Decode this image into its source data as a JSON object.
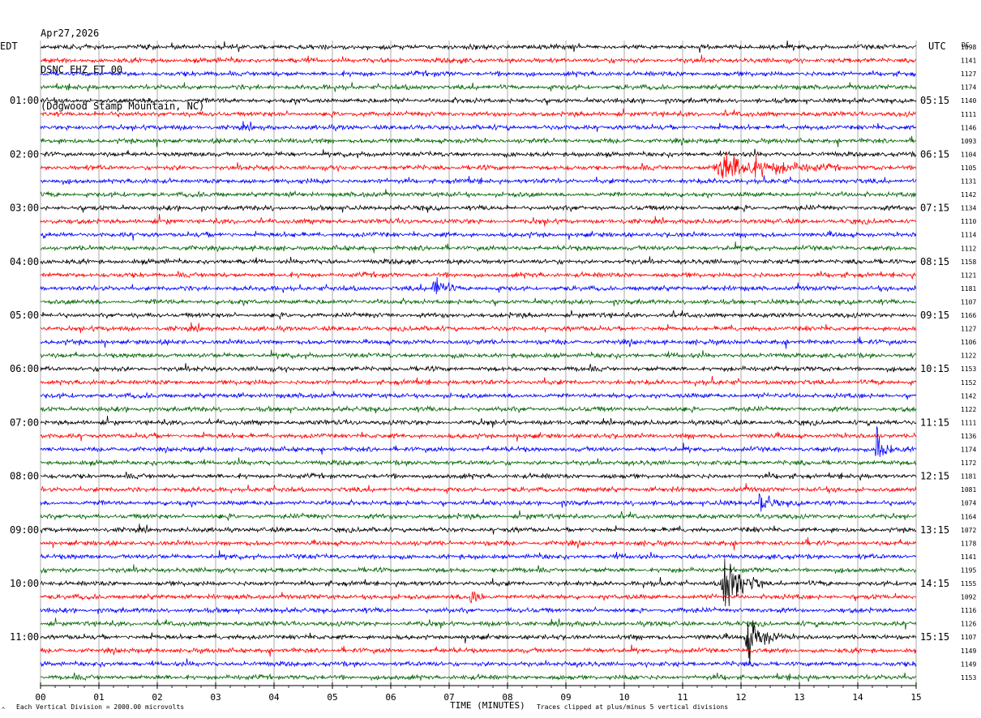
{
  "header": {
    "date": "Apr27,2026",
    "station": "DSNC EHZ ET 00",
    "location": "(Dogwood Stamp Mountain, NC)"
  },
  "left_zone_label": "EDT",
  "right_zone_label": "UTC",
  "right_column_header": "DC",
  "footer": {
    "scale_note": "Each Vertical Division = 2000.00 microvolts",
    "xlabel": "TIME (MINUTES)",
    "clip_note": "Traces clipped at plus/minus 5 vertical divisions"
  },
  "colors": {
    "trace_cycle": [
      "#000000",
      "#ff0000",
      "#0000ff",
      "#006400"
    ],
    "grid": "#000000"
  },
  "chart_data": {
    "type": "line",
    "title": "",
    "xlabel": "TIME (MINUTES)",
    "xlim": [
      0,
      15
    ],
    "x_tick_labels": [
      "00",
      "01",
      "02",
      "03",
      "04",
      "05",
      "06",
      "07",
      "08",
      "09",
      "10",
      "11",
      "12",
      "13",
      "14",
      "15"
    ],
    "grid": "vertical lines at each minute",
    "trace_count": 48,
    "left_hour_labels": [
      {
        "trace_index": 4,
        "label": "01:00"
      },
      {
        "trace_index": 8,
        "label": "02:00"
      },
      {
        "trace_index": 12,
        "label": "03:00"
      },
      {
        "trace_index": 16,
        "label": "04:00"
      },
      {
        "trace_index": 20,
        "label": "05:00"
      },
      {
        "trace_index": 24,
        "label": "06:00"
      },
      {
        "trace_index": 28,
        "label": "07:00"
      },
      {
        "trace_index": 32,
        "label": "08:00"
      },
      {
        "trace_index": 36,
        "label": "09:00"
      },
      {
        "trace_index": 40,
        "label": "10:00"
      },
      {
        "trace_index": 44,
        "label": "11:00"
      }
    ],
    "right_hour_labels": [
      {
        "trace_index": 4,
        "label": "05:15"
      },
      {
        "trace_index": 8,
        "label": "06:15"
      },
      {
        "trace_index": 12,
        "label": "07:15"
      },
      {
        "trace_index": 16,
        "label": "08:15"
      },
      {
        "trace_index": 20,
        "label": "09:15"
      },
      {
        "trace_index": 24,
        "label": "10:15"
      },
      {
        "trace_index": 28,
        "label": "11:15"
      },
      {
        "trace_index": 32,
        "label": "12:15"
      },
      {
        "trace_index": 36,
        "label": "13:15"
      },
      {
        "trace_index": 40,
        "label": "14:15"
      },
      {
        "trace_index": 44,
        "label": "15:15"
      }
    ],
    "dc_offsets": [
      "1098",
      "1141",
      "1127",
      "1174",
      "1140",
      "1111",
      "1146",
      "1093",
      "1104",
      "1105",
      "1131",
      "1142",
      "1134",
      "1110",
      "1114",
      "1112",
      "1158",
      "1121",
      "1181",
      "1107",
      "1166",
      "1127",
      "1106",
      "1122",
      "1153",
      "1152",
      "1142",
      "1122",
      "1111",
      "1136",
      "1174",
      "1172",
      "1181",
      "1081",
      "1074",
      "1164",
      "1072",
      "1178",
      "1141",
      "1195",
      "1155",
      "1092",
      "1116",
      "1126",
      "1107",
      "1149",
      "1149",
      "1153"
    ],
    "events": [
      {
        "trace_index": 9,
        "start_min": 11.5,
        "end_min": 13.8,
        "amplitude": 2.2
      },
      {
        "trace_index": 18,
        "start_min": 6.7,
        "end_min": 7.2,
        "amplitude": 2.0
      },
      {
        "trace_index": 30,
        "start_min": 14.3,
        "end_min": 14.6,
        "amplitude": 5.0
      },
      {
        "trace_index": 34,
        "start_min": 12.3,
        "end_min": 12.7,
        "amplitude": 2.5
      },
      {
        "trace_index": 40,
        "start_min": 11.65,
        "end_min": 12.4,
        "amplitude": 5.0
      },
      {
        "trace_index": 41,
        "start_min": 7.35,
        "end_min": 7.65,
        "amplitude": 2.5
      },
      {
        "trace_index": 44,
        "start_min": 12.05,
        "end_min": 12.7,
        "amplitude": 4.0
      }
    ]
  }
}
